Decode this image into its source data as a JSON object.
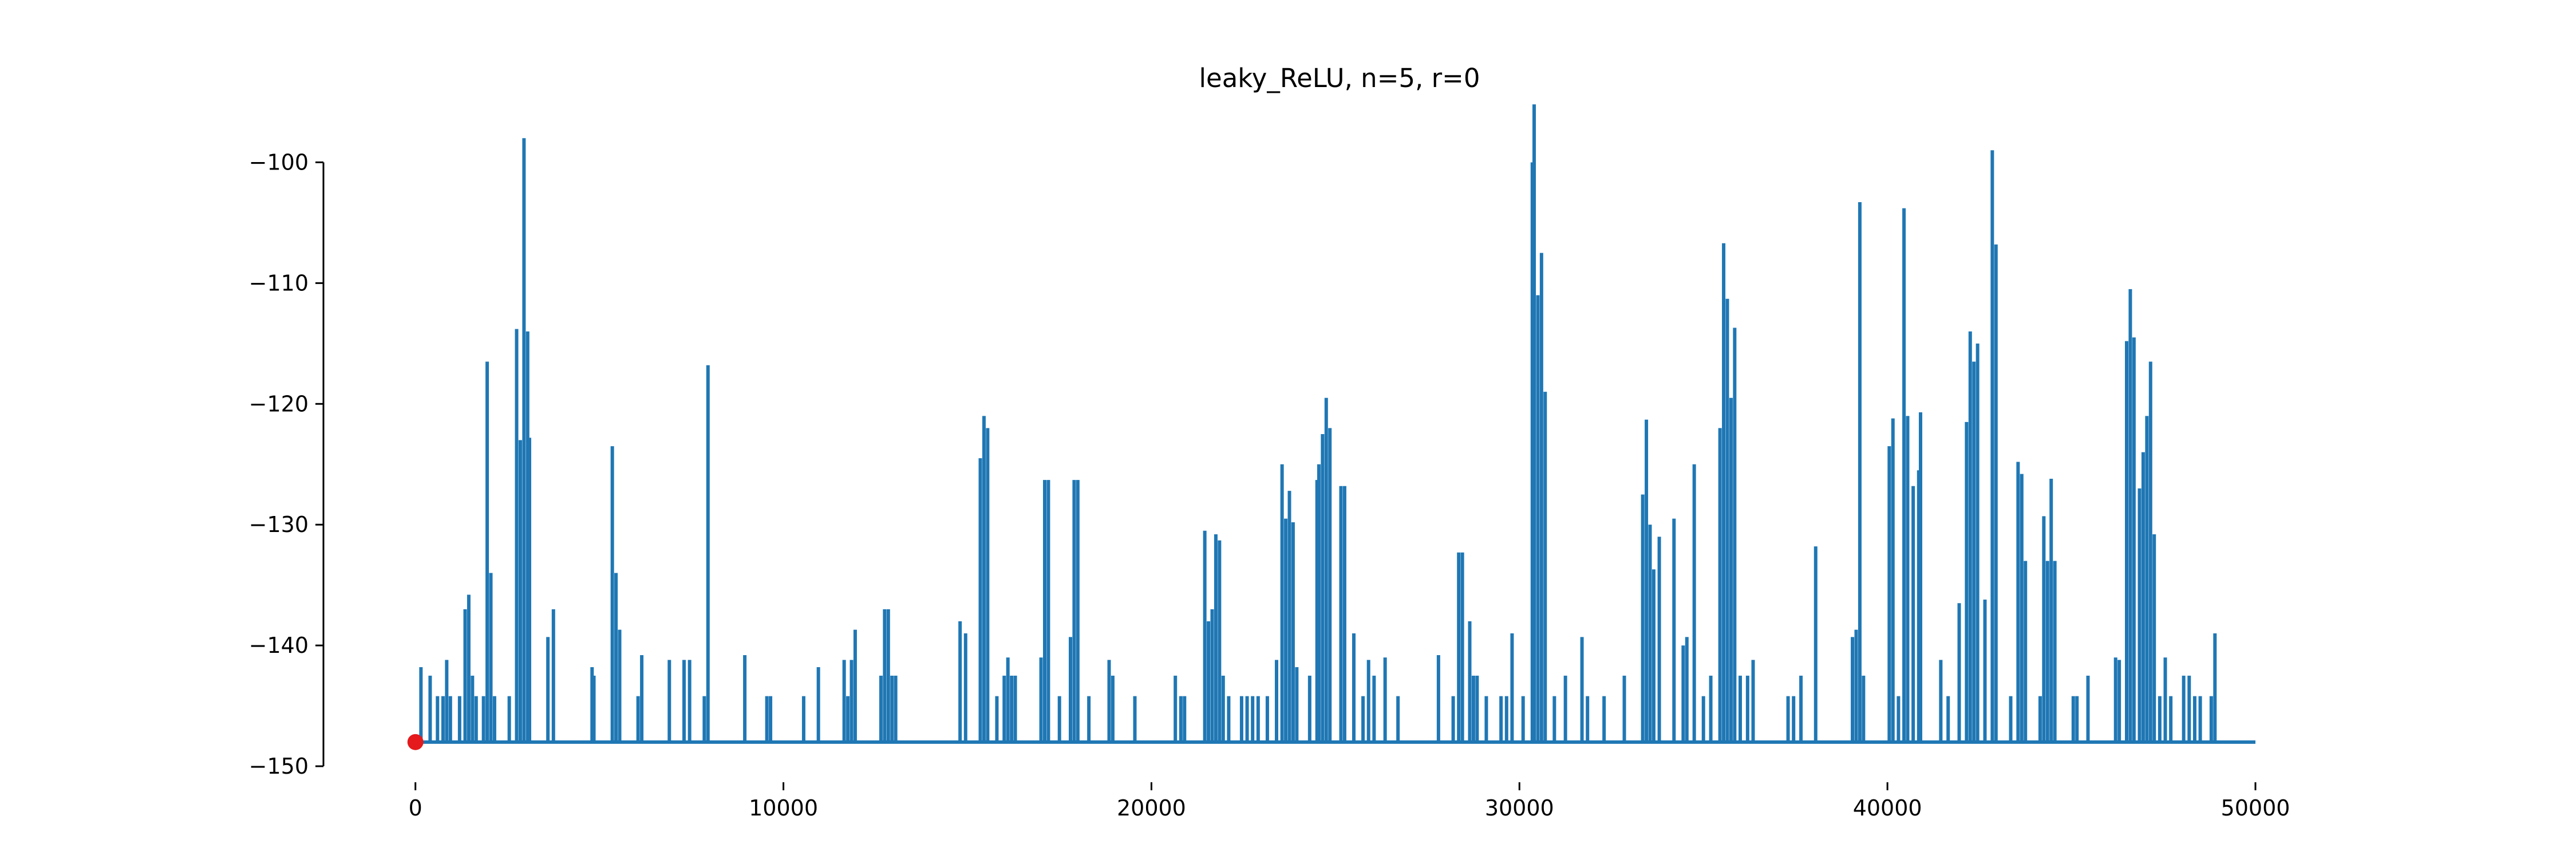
{
  "chart_data": {
    "type": "line",
    "title": "leaky_ReLU, n=5, r=0",
    "xlabel": "",
    "ylabel": "",
    "xlim": [
      -2500,
      50000
    ],
    "ylim": [
      -150,
      -95
    ],
    "xticks": [
      0,
      10000,
      20000,
      30000,
      40000,
      50000
    ],
    "xtick_labels": [
      "0",
      "10000",
      "20000",
      "30000",
      "40000",
      "50000"
    ],
    "yticks": [
      -150,
      -140,
      -130,
      -120,
      -110,
      -100
    ],
    "ytick_labels": [
      "−150",
      "−140",
      "−130",
      "−120",
      "−110",
      "−100"
    ],
    "grid": false,
    "series": [
      {
        "color": "#1f77b4",
        "baseline": -148,
        "x_range": [
          0,
          50000
        ],
        "spikes": [
          [
            150,
            -141.8
          ],
          [
            400,
            -142.5
          ],
          [
            600,
            -144.2
          ],
          [
            750,
            -144.2
          ],
          [
            850,
            -141.2
          ],
          [
            950,
            -144.2
          ],
          [
            1200,
            -144.2
          ],
          [
            1350,
            -137.0
          ],
          [
            1450,
            -135.8
          ],
          [
            1550,
            -142.5
          ],
          [
            1650,
            -144.2
          ],
          [
            1850,
            -144.2
          ],
          [
            1950,
            -116.5
          ],
          [
            2050,
            -134.0
          ],
          [
            2150,
            -144.2
          ],
          [
            2550,
            -144.2
          ],
          [
            2750,
            -113.8
          ],
          [
            2850,
            -123.0
          ],
          [
            2950,
            -98.0
          ],
          [
            3050,
            -114.0
          ],
          [
            3100,
            -122.8
          ],
          [
            3600,
            -139.3
          ],
          [
            3750,
            -137.0
          ],
          [
            4800,
            -141.8
          ],
          [
            4850,
            -142.5
          ],
          [
            5350,
            -123.5
          ],
          [
            5450,
            -134.0
          ],
          [
            5550,
            -138.7
          ],
          [
            6050,
            -144.2
          ],
          [
            6150,
            -140.8
          ],
          [
            6900,
            -141.2
          ],
          [
            7300,
            -141.2
          ],
          [
            7450,
            -141.2
          ],
          [
            7850,
            -144.2
          ],
          [
            7950,
            -116.8
          ],
          [
            8950,
            -140.8
          ],
          [
            9550,
            -144.2
          ],
          [
            9650,
            -144.2
          ],
          [
            10550,
            -144.2
          ],
          [
            10950,
            -141.8
          ],
          [
            11650,
            -141.2
          ],
          [
            11750,
            -144.2
          ],
          [
            11850,
            -141.2
          ],
          [
            11950,
            -138.7
          ],
          [
            12650,
            -142.5
          ],
          [
            12750,
            -137.0
          ],
          [
            12850,
            -137.0
          ],
          [
            12950,
            -142.5
          ],
          [
            13050,
            -142.5
          ],
          [
            14800,
            -138.0
          ],
          [
            14950,
            -139.0
          ],
          [
            15350,
            -124.5
          ],
          [
            15450,
            -121.0
          ],
          [
            15550,
            -122.0
          ],
          [
            15800,
            -144.2
          ],
          [
            16000,
            -142.5
          ],
          [
            16100,
            -141.0
          ],
          [
            16200,
            -142.5
          ],
          [
            16300,
            -142.5
          ],
          [
            17000,
            -141.0
          ],
          [
            17100,
            -126.3
          ],
          [
            17200,
            -126.3
          ],
          [
            17500,
            -144.2
          ],
          [
            17800,
            -139.3
          ],
          [
            17900,
            -126.3
          ],
          [
            18000,
            -126.3
          ],
          [
            18300,
            -144.2
          ],
          [
            18850,
            -141.2
          ],
          [
            18950,
            -142.5
          ],
          [
            19550,
            -144.2
          ],
          [
            20650,
            -142.5
          ],
          [
            20800,
            -144.2
          ],
          [
            20900,
            -144.2
          ],
          [
            21450,
            -130.5
          ],
          [
            21550,
            -138.0
          ],
          [
            21650,
            -137.0
          ],
          [
            21750,
            -130.8
          ],
          [
            21850,
            -131.3
          ],
          [
            21950,
            -142.5
          ],
          [
            22100,
            -144.2
          ],
          [
            22450,
            -144.2
          ],
          [
            22600,
            -144.2
          ],
          [
            22750,
            -144.2
          ],
          [
            22900,
            -144.2
          ],
          [
            23150,
            -144.2
          ],
          [
            23400,
            -141.2
          ],
          [
            23550,
            -125.0
          ],
          [
            23650,
            -129.5
          ],
          [
            23750,
            -127.2
          ],
          [
            23850,
            -129.8
          ],
          [
            23950,
            -141.8
          ],
          [
            24300,
            -142.5
          ],
          [
            24500,
            -126.3
          ],
          [
            24550,
            -125.0
          ],
          [
            24650,
            -122.5
          ],
          [
            24750,
            -119.5
          ],
          [
            24850,
            -122.0
          ],
          [
            25150,
            -126.8
          ],
          [
            25250,
            -126.8
          ],
          [
            25500,
            -139.0
          ],
          [
            25750,
            -144.2
          ],
          [
            25900,
            -141.2
          ],
          [
            26050,
            -142.5
          ],
          [
            26350,
            -141.0
          ],
          [
            26700,
            -144.2
          ],
          [
            27800,
            -140.8
          ],
          [
            28200,
            -144.2
          ],
          [
            28350,
            -132.3
          ],
          [
            28450,
            -132.3
          ],
          [
            28650,
            -138.0
          ],
          [
            28750,
            -142.5
          ],
          [
            28850,
            -142.5
          ],
          [
            29100,
            -144.2
          ],
          [
            29500,
            -144.2
          ],
          [
            29650,
            -144.2
          ],
          [
            29800,
            -139.0
          ],
          [
            30100,
            -144.2
          ],
          [
            30350,
            -100.0
          ],
          [
            30400,
            -95.2
          ],
          [
            30500,
            -111.0
          ],
          [
            30600,
            -107.5
          ],
          [
            30700,
            -119.0
          ],
          [
            30950,
            -144.2
          ],
          [
            31250,
            -142.5
          ],
          [
            31700,
            -139.3
          ],
          [
            31850,
            -144.2
          ],
          [
            32300,
            -144.2
          ],
          [
            32850,
            -142.5
          ],
          [
            33350,
            -127.5
          ],
          [
            33450,
            -121.3
          ],
          [
            33550,
            -130.0
          ],
          [
            33650,
            -133.7
          ],
          [
            33800,
            -131.0
          ],
          [
            34200,
            -129.5
          ],
          [
            34450,
            -140.0
          ],
          [
            34550,
            -139.3
          ],
          [
            34750,
            -125.0
          ],
          [
            35000,
            -144.2
          ],
          [
            35200,
            -142.5
          ],
          [
            35450,
            -122.0
          ],
          [
            35550,
            -106.7
          ],
          [
            35650,
            -111.3
          ],
          [
            35750,
            -119.5
          ],
          [
            35850,
            -113.7
          ],
          [
            36000,
            -142.5
          ],
          [
            36200,
            -142.5
          ],
          [
            36350,
            -141.2
          ],
          [
            37300,
            -144.2
          ],
          [
            37450,
            -144.2
          ],
          [
            37650,
            -142.5
          ],
          [
            38050,
            -131.8
          ],
          [
            39050,
            -139.3
          ],
          [
            39150,
            -138.7
          ],
          [
            39250,
            -103.3
          ],
          [
            39350,
            -142.5
          ],
          [
            40050,
            -123.5
          ],
          [
            40150,
            -121.2
          ],
          [
            40300,
            -144.2
          ],
          [
            40450,
            -103.8
          ],
          [
            40550,
            -121.0
          ],
          [
            40700,
            -126.8
          ],
          [
            40850,
            -125.5
          ],
          [
            40900,
            -120.7
          ],
          [
            41450,
            -141.2
          ],
          [
            41650,
            -144.2
          ],
          [
            41950,
            -136.5
          ],
          [
            42150,
            -121.5
          ],
          [
            42250,
            -114.0
          ],
          [
            42350,
            -116.5
          ],
          [
            42450,
            -115.0
          ],
          [
            42650,
            -136.2
          ],
          [
            42850,
            -99.0
          ],
          [
            42950,
            -106.8
          ],
          [
            43350,
            -144.2
          ],
          [
            43550,
            -124.8
          ],
          [
            43650,
            -125.8
          ],
          [
            43750,
            -133.0
          ],
          [
            44150,
            -144.2
          ],
          [
            44250,
            -129.3
          ],
          [
            44350,
            -133.0
          ],
          [
            44450,
            -126.2
          ],
          [
            44550,
            -133.0
          ],
          [
            45050,
            -144.2
          ],
          [
            45150,
            -144.2
          ],
          [
            45450,
            -142.5
          ],
          [
            46200,
            -141.0
          ],
          [
            46300,
            -141.2
          ],
          [
            46500,
            -114.8
          ],
          [
            46600,
            -110.5
          ],
          [
            46700,
            -114.5
          ],
          [
            46850,
            -127.0
          ],
          [
            46950,
            -124.0
          ],
          [
            47050,
            -121.0
          ],
          [
            47150,
            -116.5
          ],
          [
            47250,
            -130.8
          ],
          [
            47400,
            -144.2
          ],
          [
            47550,
            -141.0
          ],
          [
            47700,
            -144.2
          ],
          [
            48050,
            -142.5
          ],
          [
            48200,
            -142.5
          ],
          [
            48350,
            -144.2
          ],
          [
            48500,
            -144.2
          ],
          [
            48800,
            -144.2
          ],
          [
            48900,
            -139.0
          ]
        ]
      }
    ],
    "marker": {
      "x": 0,
      "y": -148,
      "color": "#e41a1c"
    }
  }
}
